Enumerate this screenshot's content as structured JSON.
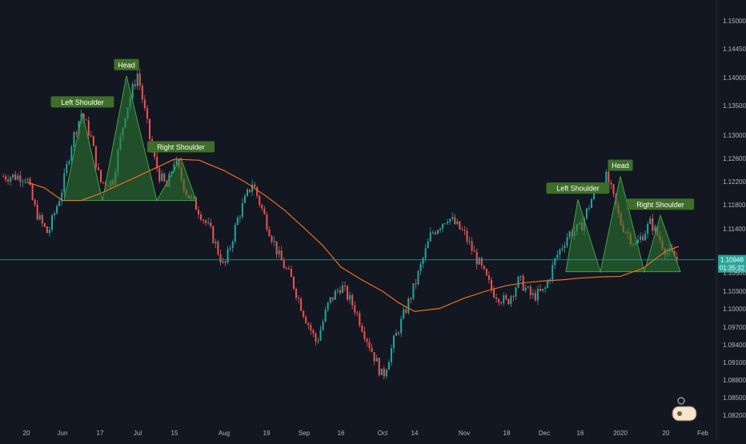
{
  "chart_data": {
    "type": "candlestick",
    "title": "",
    "xlabel": "",
    "ylabel": "",
    "ylim": [
      1.0809,
      1.1533
    ],
    "x_ticks": [
      "20",
      "Jun",
      "17",
      "Jul",
      "15",
      "Aug",
      "19",
      "Sep",
      "16",
      "Oct",
      "14",
      "Nov",
      "18",
      "Dec",
      "16",
      "2020",
      "20",
      "Feb"
    ],
    "y_ticks": [
      "1.15000",
      "1.14450",
      "1.14000",
      "1.13500",
      "1.13000",
      "1.12600",
      "1.12200",
      "1.11800",
      "1.11400",
      "1.10600",
      "1.10300",
      "1.10000",
      "1.09700",
      "1.09400",
      "1.09100",
      "1.08800",
      "1.08500",
      "1.08200"
    ],
    "price_series": {
      "name": "",
      "points": [
        [
          "20",
          1.124
        ],
        [
          "",
          1.119
        ],
        [
          "",
          1.116
        ],
        [
          "",
          1.114
        ],
        [
          "",
          1.118
        ],
        [
          "Jun",
          1.122
        ],
        [
          "",
          1.13
        ],
        [
          "",
          1.135
        ],
        [
          "",
          1.131
        ],
        [
          "17",
          1.123
        ],
        [
          "",
          1.123
        ],
        [
          "",
          1.135
        ],
        [
          "Jul",
          1.142
        ],
        [
          "",
          1.135
        ],
        [
          "",
          1.128
        ],
        [
          "",
          1.124
        ],
        [
          "",
          1.122
        ],
        [
          "15",
          1.127
        ],
        [
          "",
          1.121
        ],
        [
          "",
          1.118
        ],
        [
          "",
          1.114
        ],
        [
          "Aug",
          1.108
        ],
        [
          "",
          1.117
        ],
        [
          "",
          1.123
        ],
        [
          "19",
          1.116
        ],
        [
          "",
          1.11
        ],
        [
          "",
          1.106
        ],
        [
          "Sep",
          1.1
        ],
        [
          "",
          1.095
        ],
        [
          "",
          1.102
        ],
        [
          "16",
          1.105
        ],
        [
          "",
          1.101
        ],
        [
          "",
          1.095
        ],
        [
          "Oct",
          1.089
        ],
        [
          "",
          1.095
        ],
        [
          "",
          1.1
        ],
        [
          "14",
          1.105
        ],
        [
          "",
          1.114
        ],
        [
          "",
          1.117
        ],
        [
          "Nov",
          1.114
        ],
        [
          "",
          1.109
        ],
        [
          "",
          1.104
        ],
        [
          "18",
          1.102
        ],
        [
          "",
          1.106
        ],
        [
          "",
          1.103
        ],
        [
          "Dec",
          1.104
        ],
        [
          "",
          1.11
        ],
        [
          "",
          1.114
        ],
        [
          "16",
          1.115
        ],
        [
          "",
          1.121
        ],
        [
          "",
          1.124
        ],
        [
          "2020",
          1.116
        ],
        [
          "",
          1.112
        ],
        [
          "",
          1.116
        ],
        [
          "20",
          1.111
        ],
        [
          "",
          1.1095
        ]
      ]
    },
    "moving_average": {
      "name": "",
      "color": "#ef6c1f",
      "points": [
        [
          "20",
          1.123
        ],
        [
          "",
          1.122
        ],
        [
          "Jun",
          1.1198
        ],
        [
          "",
          1.1198
        ],
        [
          "17",
          1.121
        ],
        [
          "",
          1.1225
        ],
        [
          "Jul",
          1.124
        ],
        [
          "",
          1.1255
        ],
        [
          "15",
          1.127
        ],
        [
          "",
          1.1268
        ],
        [
          "Aug",
          1.125
        ],
        [
          "",
          1.123
        ],
        [
          "19",
          1.1205
        ],
        [
          "",
          1.118
        ],
        [
          "Sep",
          1.115
        ],
        [
          "",
          1.112
        ],
        [
          "16",
          1.1082
        ],
        [
          "",
          1.106
        ],
        [
          "Oct",
          1.104
        ],
        [
          "",
          1.102
        ],
        [
          "14",
          1.1005
        ],
        [
          "",
          1.101
        ],
        [
          "Nov",
          1.1028
        ],
        [
          "",
          1.104
        ],
        [
          "18",
          1.105
        ],
        [
          "",
          1.1055
        ],
        [
          "Dec",
          1.1058
        ],
        [
          "",
          1.106
        ],
        [
          "16",
          1.1063
        ],
        [
          "",
          1.1065
        ],
        [
          "2020",
          1.1066
        ],
        [
          "",
          1.108
        ],
        [
          "20",
          1.111
        ],
        [
          "",
          1.1118
        ]
      ]
    },
    "current_price": {
      "value": 1.10948,
      "value_label": "1.10948",
      "countdown_label": "01:35:32",
      "color": "#26a69a"
    },
    "patterns": [
      {
        "name": "head-and-shoulders-1",
        "neckline": 1.1198,
        "polygon": [
          [
            "",
            1.1198
          ],
          [
            "Jun",
            1.135
          ],
          [
            "",
            1.1198
          ],
          [
            "Jul",
            1.1415
          ],
          [
            "",
            1.1198
          ],
          [
            "15",
            1.1272
          ],
          [
            "",
            1.1198
          ]
        ],
        "labels": [
          {
            "text": "Left Shoulder",
            "at": [
              "Jun",
              1.135
            ]
          },
          {
            "text": "Head",
            "at": [
              "Jul",
              1.1415
            ]
          },
          {
            "text": "Right Shoulder",
            "at": [
              "15",
              1.1272
            ]
          }
        ]
      },
      {
        "name": "head-and-shoulders-2",
        "neckline": 1.1074,
        "polygon": [
          [
            "",
            1.1074
          ],
          [
            "16",
            1.12
          ],
          [
            "",
            1.1074
          ],
          [
            "2020",
            1.124
          ],
          [
            "",
            1.1074
          ],
          [
            "20",
            1.1172
          ],
          [
            "",
            1.1074
          ]
        ],
        "labels": [
          {
            "text": "Left Shoulder",
            "at": [
              "16",
              1.12
            ]
          },
          {
            "text": "Head",
            "at": [
              "2020",
              1.124
            ]
          },
          {
            "text": "Right Shoulder",
            "at": [
              "20",
              1.1172
            ]
          }
        ]
      }
    ],
    "colors": {
      "background": "#131722",
      "up": "#26a69a",
      "down": "#ef5350",
      "pattern_fill": "#2e7d32",
      "pattern_label_bg": "#3f6e2a",
      "axis_text": "#b2b5be"
    },
    "grid": false,
    "legend": "none"
  }
}
